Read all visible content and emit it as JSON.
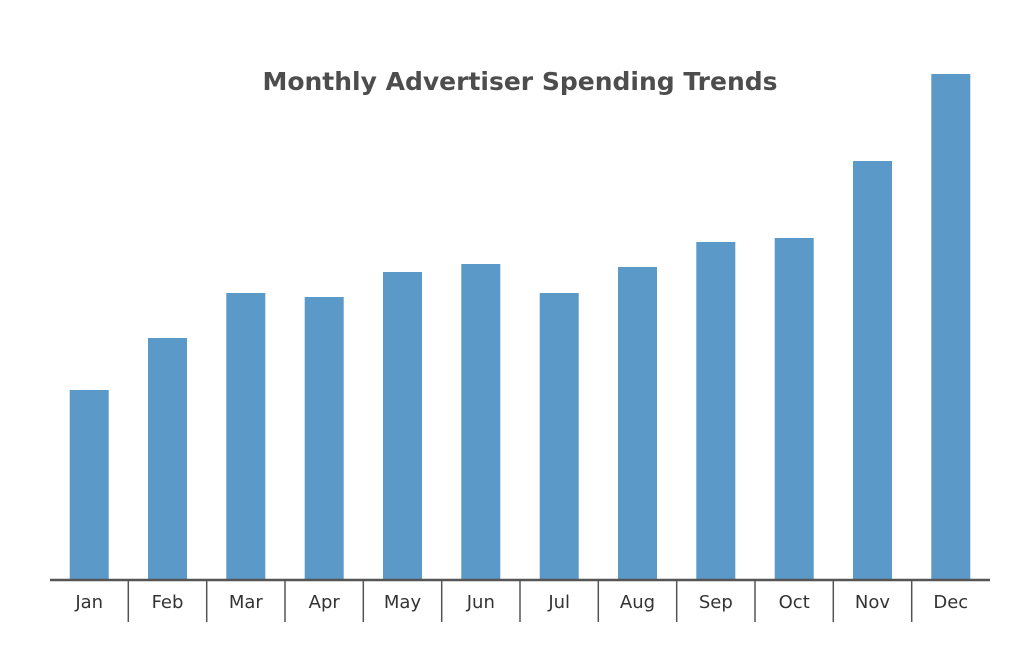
{
  "chart_data": {
    "type": "bar",
    "title": "Monthly Advertiser Spending Trends",
    "xlabel": "",
    "ylabel": "",
    "categories": [
      "Jan",
      "Feb",
      "Mar",
      "Apr",
      "May",
      "Jun",
      "Jul",
      "Aug",
      "Sep",
      "Oct",
      "Nov",
      "Dec"
    ],
    "values": [
      190,
      242,
      287,
      283,
      308,
      316,
      287,
      313,
      338,
      342,
      419,
      506
    ],
    "ylim": [
      0,
      520
    ],
    "grid": false,
    "legend": "none",
    "bar_color": "#5b99c8",
    "axis_color": "#555555",
    "title_color": "#4d4d4d",
    "label_color": "#333333"
  }
}
